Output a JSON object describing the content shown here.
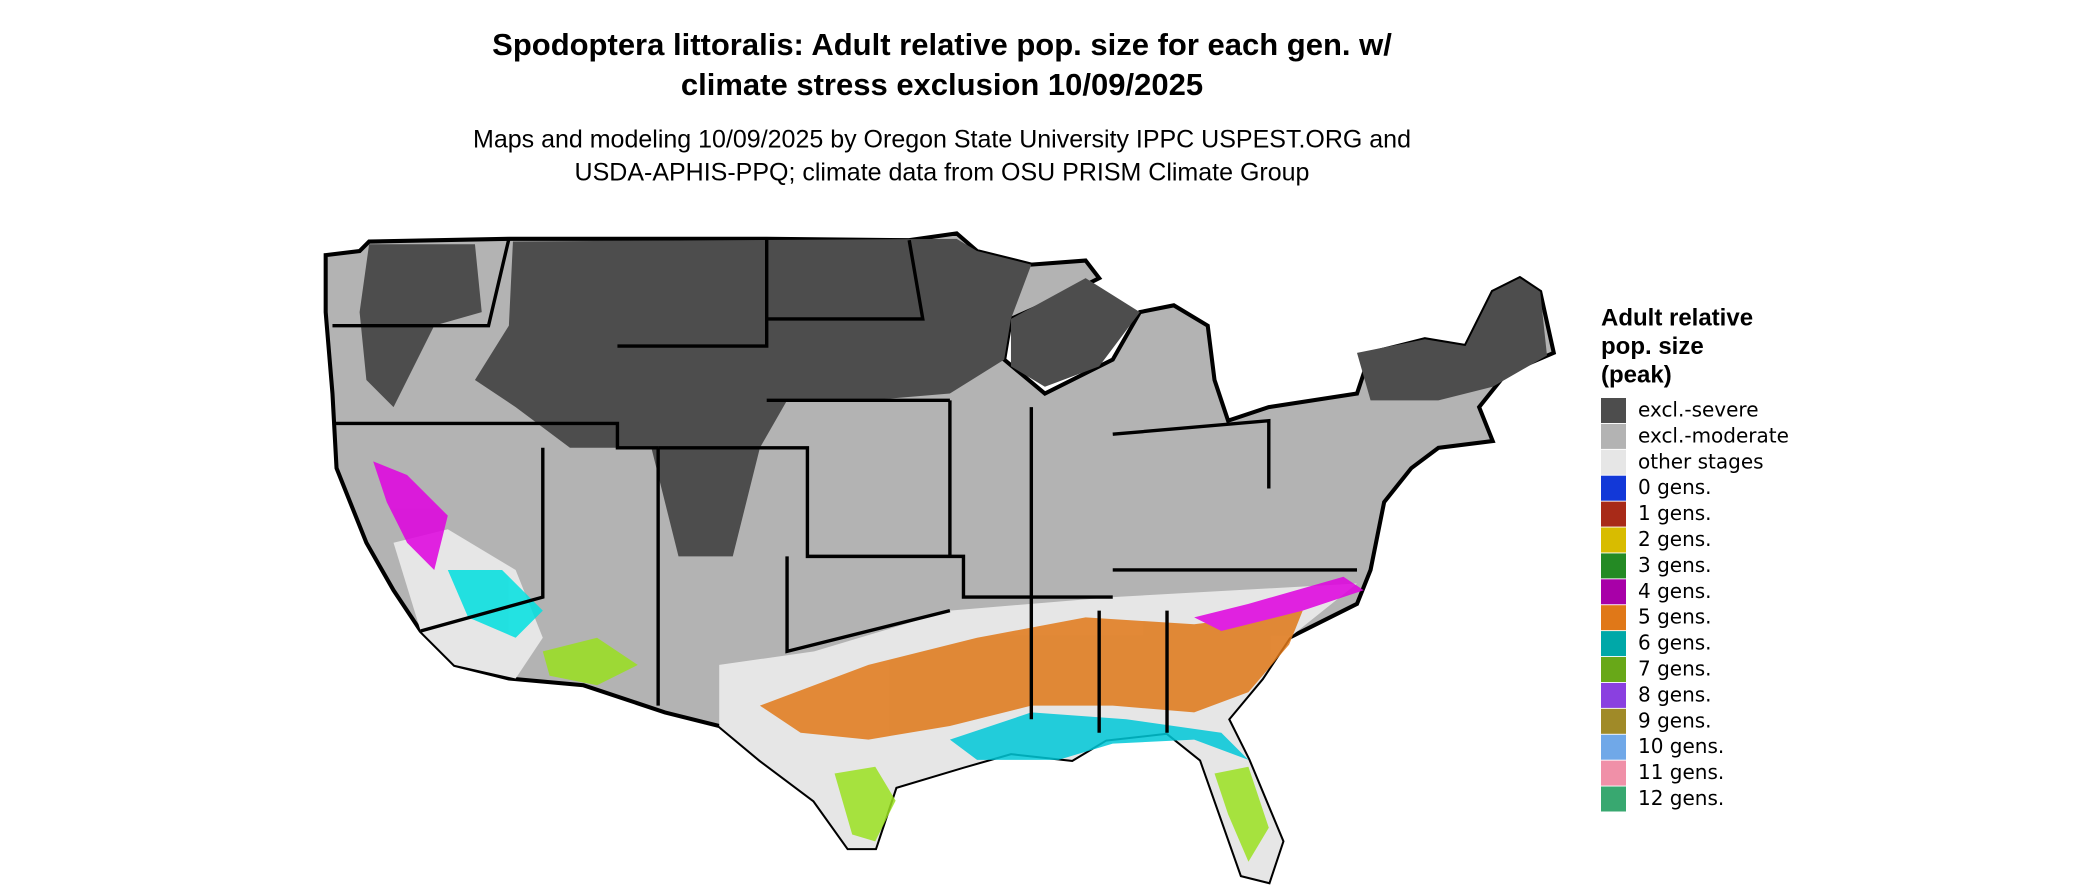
{
  "title": [
    "Spodoptera littoralis: Adult relative pop. size for each gen. w/",
    "climate stress exclusion 10/09/2025"
  ],
  "subtitle": [
    "Maps and modeling 10/09/2025 by Oregon State University IPPC USPEST.ORG and",
    "USDA-APHIS-PPQ; climate data from OSU PRISM Climate Group"
  ],
  "legend": {
    "title": [
      "Adult relative",
      "pop. size",
      "(peak)"
    ],
    "items": [
      {
        "label": "excl.-severe",
        "color": "#4d4d4d"
      },
      {
        "label": "excl.-moderate",
        "color": "#b3b3b3"
      },
      {
        "label": "other stages",
        "color": "#e6e6e6"
      },
      {
        "label": "0 gens.",
        "color": "#1238d8"
      },
      {
        "label": "1 gens.",
        "color": "#a82a18"
      },
      {
        "label": "2 gens.",
        "color": "#d8bc00"
      },
      {
        "label": "3 gens.",
        "color": "#248a24"
      },
      {
        "label": "4 gens.",
        "color": "#a800a8"
      },
      {
        "label": "5 gens.",
        "color": "#e07818"
      },
      {
        "label": "6 gens.",
        "color": "#00a8a8"
      },
      {
        "label": "7 gens.",
        "color": "#68a818"
      },
      {
        "label": "8 gens.",
        "color": "#8a40e0"
      },
      {
        "label": "9 gens.",
        "color": "#a08a28"
      },
      {
        "label": "10 gens.",
        "color": "#70a8e8"
      },
      {
        "label": "11 gens.",
        "color": "#f090a8"
      },
      {
        "label": "12 gens.",
        "color": "#38a870"
      }
    ]
  }
}
